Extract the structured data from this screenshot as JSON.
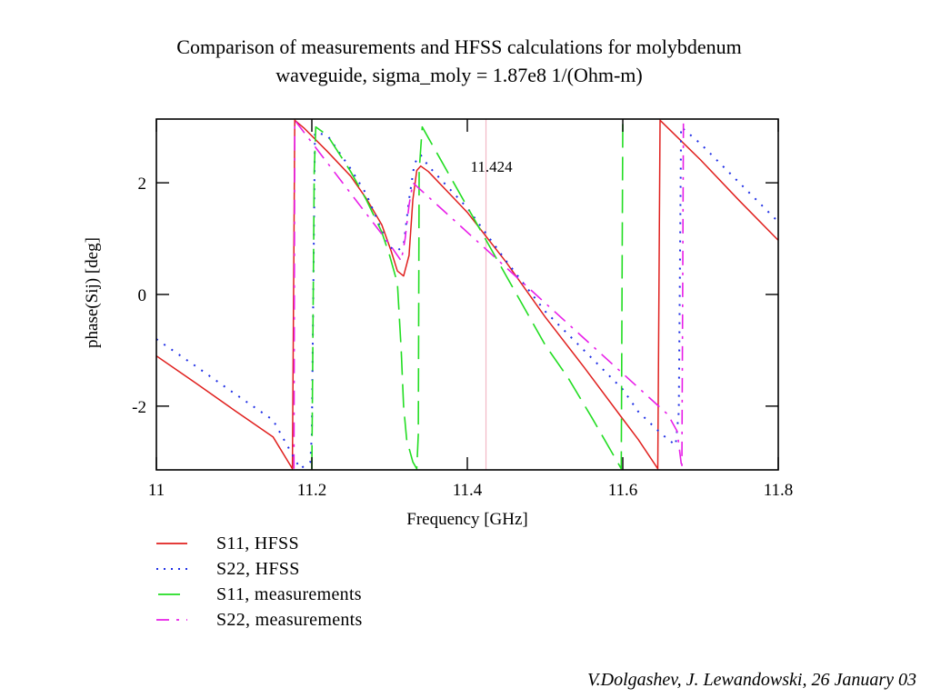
{
  "title": {
    "line1": "Comparison of measurements and HFSS calculations for molybdenum",
    "line2": "waveguide, sigma_moly = 1.87e8 1/(Ohm-m)"
  },
  "credit": "V.Dolgashev, J. Lewandowski, 26 January 03",
  "chart_data": {
    "type": "line",
    "xlabel": "Frequency [GHz]",
    "ylabel": "phase(Sij) [deg]",
    "xlim": [
      11.0,
      11.8
    ],
    "ylim": [
      -3.1416,
      3.1416
    ],
    "x_ticks": [
      11.0,
      11.2,
      11.4,
      11.6,
      11.8
    ],
    "x_tick_labels": [
      "11",
      "11.2",
      "11.4",
      "11.6",
      "11.8"
    ],
    "y_ticks": [
      -2,
      0,
      2
    ],
    "y_tick_labels": [
      "-2",
      "0",
      "2"
    ],
    "marker_line": {
      "x": 11.424,
      "label": "11.424",
      "color": "#f2b8c6"
    },
    "legend_position": "below",
    "grid": false,
    "series": [
      {
        "name": "S11, HFSS",
        "color": "#e0201e",
        "style": "solid",
        "points": [
          [
            11.0,
            -1.1
          ],
          [
            11.05,
            -1.58
          ],
          [
            11.1,
            -2.07
          ],
          [
            11.15,
            -2.55
          ],
          [
            11.175,
            -3.12
          ],
          [
            11.178,
            3.12
          ],
          [
            11.19,
            2.98
          ],
          [
            11.22,
            2.56
          ],
          [
            11.25,
            2.12
          ],
          [
            11.27,
            1.72
          ],
          [
            11.29,
            1.25
          ],
          [
            11.302,
            0.78
          ],
          [
            11.31,
            0.42
          ],
          [
            11.318,
            0.33
          ],
          [
            11.325,
            0.7
          ],
          [
            11.33,
            1.7
          ],
          [
            11.335,
            2.22
          ],
          [
            11.34,
            2.3
          ],
          [
            11.35,
            2.2
          ],
          [
            11.4,
            1.47
          ],
          [
            11.45,
            0.58
          ],
          [
            11.5,
            -0.4
          ],
          [
            11.55,
            -1.3
          ],
          [
            11.6,
            -2.23
          ],
          [
            11.62,
            -2.6
          ],
          [
            11.645,
            -3.12
          ],
          [
            11.648,
            3.12
          ],
          [
            11.7,
            2.41
          ],
          [
            11.75,
            1.68
          ],
          [
            11.8,
            0.97
          ]
        ]
      },
      {
        "name": "S22, HFSS",
        "color": "#1e2ee6",
        "style": "dotted",
        "points": [
          [
            11.0,
            -0.8
          ],
          [
            11.05,
            -1.28
          ],
          [
            11.1,
            -1.77
          ],
          [
            11.15,
            -2.25
          ],
          [
            11.185,
            -3.12
          ],
          [
            11.198,
            -3.0
          ],
          [
            11.2,
            -2.5
          ],
          [
            11.204,
            2.9
          ],
          [
            11.22,
            2.85
          ],
          [
            11.25,
            2.25
          ],
          [
            11.27,
            1.8
          ],
          [
            11.29,
            1.15
          ],
          [
            11.3,
            0.85
          ],
          [
            11.31,
            0.78
          ],
          [
            11.318,
            0.88
          ],
          [
            11.325,
            1.7
          ],
          [
            11.332,
            2.35
          ],
          [
            11.34,
            2.5
          ],
          [
            11.35,
            2.3
          ],
          [
            11.4,
            1.55
          ],
          [
            11.45,
            0.6
          ],
          [
            11.5,
            -0.3
          ],
          [
            11.55,
            -1.0
          ],
          [
            11.6,
            -1.7
          ],
          [
            11.62,
            -2.1
          ],
          [
            11.65,
            -2.5
          ],
          [
            11.668,
            -2.7
          ],
          [
            11.672,
            -2.1
          ],
          [
            11.675,
            3.0
          ],
          [
            11.7,
            2.7
          ],
          [
            11.75,
            2.0
          ],
          [
            11.8,
            1.3
          ]
        ]
      },
      {
        "name": "S11, measurements",
        "color": "#22dd22",
        "style": "dashed",
        "points": [
          [
            11.2,
            -3.12
          ],
          [
            11.203,
            2.2
          ],
          [
            11.205,
            3.0
          ],
          [
            11.22,
            2.85
          ],
          [
            11.25,
            2.2
          ],
          [
            11.27,
            1.7
          ],
          [
            11.29,
            1.12
          ],
          [
            11.3,
            0.7
          ],
          [
            11.31,
            0.2
          ],
          [
            11.315,
            -1.0
          ],
          [
            11.318,
            -2.0
          ],
          [
            11.322,
            -2.6
          ],
          [
            11.33,
            -3.0
          ],
          [
            11.335,
            -3.12
          ],
          [
            11.337,
            -2.5
          ],
          [
            11.338,
            2.2
          ],
          [
            11.342,
            3.0
          ],
          [
            11.5,
            -0.9
          ],
          [
            11.53,
            -1.5
          ],
          [
            11.56,
            -2.2
          ],
          [
            11.598,
            -3.12
          ],
          [
            11.6,
            3.12
          ]
        ]
      },
      {
        "name": "S22, measurements",
        "color": "#e81ee8",
        "style": "dashdot",
        "points": [
          [
            11.177,
            -3.12
          ],
          [
            11.178,
            3.12
          ],
          [
            11.3,
            0.9
          ],
          [
            11.315,
            0.6
          ],
          [
            11.32,
            1.0
          ],
          [
            11.325,
            1.6
          ],
          [
            11.33,
            2.0
          ],
          [
            11.658,
            -2.15
          ],
          [
            11.67,
            -2.45
          ],
          [
            11.676,
            -3.12
          ],
          [
            11.678,
            3.12
          ]
        ]
      }
    ]
  },
  "legend": {
    "items": [
      {
        "label": "S11, HFSS",
        "color": "#e0201e",
        "style": "solid"
      },
      {
        "label": "S22, HFSS",
        "color": "#1e2ee6",
        "style": "dotted"
      },
      {
        "label": "S11, measurements",
        "color": "#22dd22",
        "style": "dashed"
      },
      {
        "label": "S22, measurements",
        "color": "#e81ee8",
        "style": "dashdot"
      }
    ]
  }
}
